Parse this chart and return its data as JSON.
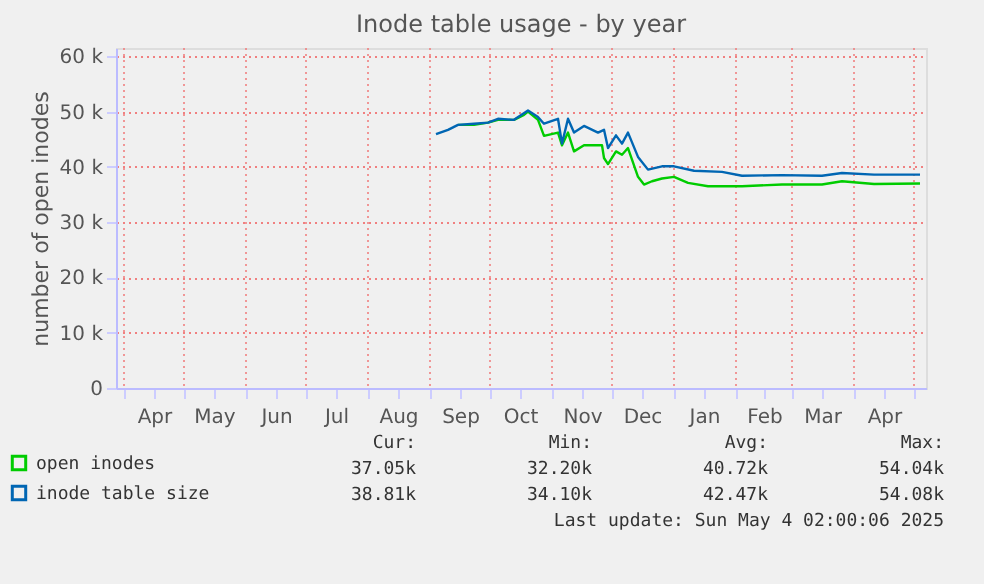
{
  "chart_data": {
    "type": "line",
    "title": "Inode table usage - by year",
    "ylabel": "number of open inodes",
    "xlim": [
      "2024-03-28",
      "2025-05-07"
    ],
    "xticks": [
      {
        "value": "2024-04-01",
        "label": null
      },
      {
        "value": "2024-04-16",
        "label": "Apr"
      },
      {
        "value": "2024-05-01",
        "label": null
      },
      {
        "value": "2024-05-16",
        "label": "May"
      },
      {
        "value": "2024-06-01",
        "label": null
      },
      {
        "value": "2024-06-16",
        "label": "Jun"
      },
      {
        "value": "2024-07-01",
        "label": null
      },
      {
        "value": "2024-07-16",
        "label": "Jul"
      },
      {
        "value": "2024-08-01",
        "label": null
      },
      {
        "value": "2024-08-16",
        "label": "Aug"
      },
      {
        "value": "2024-09-01",
        "label": null
      },
      {
        "value": "2024-09-16",
        "label": "Sep"
      },
      {
        "value": "2024-10-01",
        "label": null
      },
      {
        "value": "2024-10-16",
        "label": "Oct"
      },
      {
        "value": "2024-11-01",
        "label": null
      },
      {
        "value": "2024-11-16",
        "label": "Nov"
      },
      {
        "value": "2024-12-01",
        "label": null
      },
      {
        "value": "2024-12-16",
        "label": "Dec"
      },
      {
        "value": "2025-01-01",
        "label": null
      },
      {
        "value": "2025-01-16",
        "label": "Jan"
      },
      {
        "value": "2025-02-01",
        "label": null
      },
      {
        "value": "2025-02-15",
        "label": "Feb"
      },
      {
        "value": "2025-03-01",
        "label": null
      },
      {
        "value": "2025-03-16",
        "label": "Mar"
      },
      {
        "value": "2025-04-01",
        "label": null
      },
      {
        "value": "2025-04-16",
        "label": "Apr"
      },
      {
        "value": "2025-05-01",
        "label": null
      }
    ],
    "ylim": [
      0,
      61500
    ],
    "yticks": [
      0,
      {
        "value": 10000,
        "label": "10 k"
      },
      {
        "value": 20000,
        "label": "20 k"
      },
      {
        "value": 30000,
        "label": "30 k"
      },
      {
        "value": 40000,
        "label": "40 k"
      },
      {
        "value": 50000,
        "label": "50 k"
      },
      {
        "value": 60000,
        "label": "60 k"
      }
    ],
    "grid": true,
    "legend": "bottom left",
    "line_style": "solid",
    "marker": "none",
    "series": [
      {
        "name": "open inodes",
        "color": "#00cc00",
        "x": [
          "2024-09-15",
          "2024-09-23",
          "2024-09-30",
          "2024-10-05",
          "2024-10-13",
          "2024-10-18",
          "2024-10-20",
          "2024-10-25",
          "2024-10-28",
          "2024-11-04",
          "2024-11-06",
          "2024-11-09",
          "2024-11-12",
          "2024-11-17",
          "2024-11-26",
          "2024-11-27",
          "2024-11-29",
          "2024-12-03",
          "2024-12-06",
          "2024-12-09",
          "2024-12-14",
          "2024-12-17",
          "2024-12-21",
          "2024-12-26",
          "2025-01-01",
          "2025-01-08",
          "2025-01-18",
          "2025-02-04",
          "2025-02-24",
          "2025-03-16",
          "2025-03-26",
          "2025-04-11",
          "2025-05-04"
        ],
        "values": [
          47600,
          47600,
          48000,
          48500,
          48500,
          49400,
          50000,
          48500,
          45600,
          46200,
          43900,
          46200,
          42800,
          43900,
          43900,
          41600,
          40500,
          42800,
          42200,
          43400,
          38200,
          36800,
          37400,
          37900,
          38200,
          37100,
          36500,
          36500,
          36800,
          36800,
          37400,
          36900,
          37000
        ]
      },
      {
        "name": "inode table size",
        "color": "#0066b3",
        "x": [
          "2024-09-04",
          "2024-09-10",
          "2024-09-15",
          "2024-09-23",
          "2024-09-30",
          "2024-10-05",
          "2024-10-13",
          "2024-10-20",
          "2024-10-25",
          "2024-10-28",
          "2024-11-04",
          "2024-11-06",
          "2024-11-09",
          "2024-11-12",
          "2024-11-17",
          "2024-11-24",
          "2024-11-27",
          "2024-11-29",
          "2024-12-03",
          "2024-12-06",
          "2024-12-09",
          "2024-12-14",
          "2024-12-19",
          "2024-12-26",
          "2025-01-01",
          "2025-01-11",
          "2025-01-25",
          "2025-02-04",
          "2025-02-24",
          "2025-03-16",
          "2025-03-26",
          "2025-04-11",
          "2025-05-04"
        ],
        "values": [
          45900,
          46700,
          47600,
          47800,
          48000,
          48700,
          48500,
          50200,
          49000,
          47800,
          48700,
          44200,
          48700,
          46200,
          47400,
          46200,
          46700,
          43400,
          45700,
          44200,
          46200,
          41800,
          39500,
          40100,
          40100,
          39300,
          39100,
          38400,
          38500,
          38400,
          38900,
          38600,
          38600
        ]
      }
    ],
    "annotations": [
      "Cur:",
      "Min:",
      "Avg:",
      "Max:",
      "37.05k",
      "32.20k",
      "40.72k",
      "54.04k",
      "38.81k",
      "34.10k",
      "42.47k",
      "54.08k",
      "Last update: Sun May  4 02:00:06 2025"
    ]
  }
}
